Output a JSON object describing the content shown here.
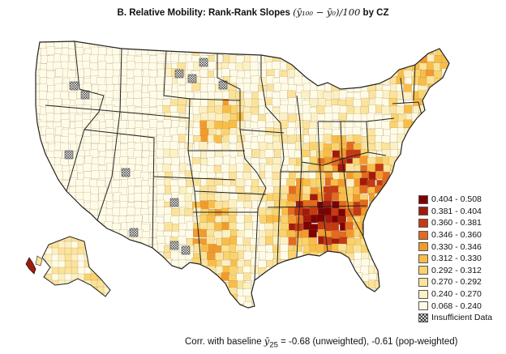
{
  "title": {
    "prefix": "B. Relative Mobility: Rank-Rank Slopes ",
    "formula": "(ȳ₁₀₀ − ȳ₀)/100",
    "suffix": " by CZ"
  },
  "legend": [
    {
      "label": "0.404 - 0.508",
      "color": "#7f0000"
    },
    {
      "label": "0.381 - 0.404",
      "color": "#a31a0b"
    },
    {
      "label": "0.360 - 0.381",
      "color": "#c53a13"
    },
    {
      "label": "0.346 - 0.360",
      "color": "#e36a1e"
    },
    {
      "label": "0.330 - 0.346",
      "color": "#f39a2c"
    },
    {
      "label": "0.312 - 0.330",
      "color": "#f9bd47"
    },
    {
      "label": "0.292 - 0.312",
      "color": "#fbd36c"
    },
    {
      "label": "0.270 - 0.292",
      "color": "#fce39a"
    },
    {
      "label": "0.240 - 0.270",
      "color": "#fdf0c2"
    },
    {
      "label": "0.068 - 0.240",
      "color": "#fffbe6"
    },
    {
      "label": "Insufficient Data",
      "color": "hatch"
    }
  ],
  "footer": {
    "prefix": "Corr. with baseline ",
    "var": "ȳ",
    "sub": "25",
    "suffix": " = -0.68 (unweighted), -0.61 (pop-weighted)"
  }
}
